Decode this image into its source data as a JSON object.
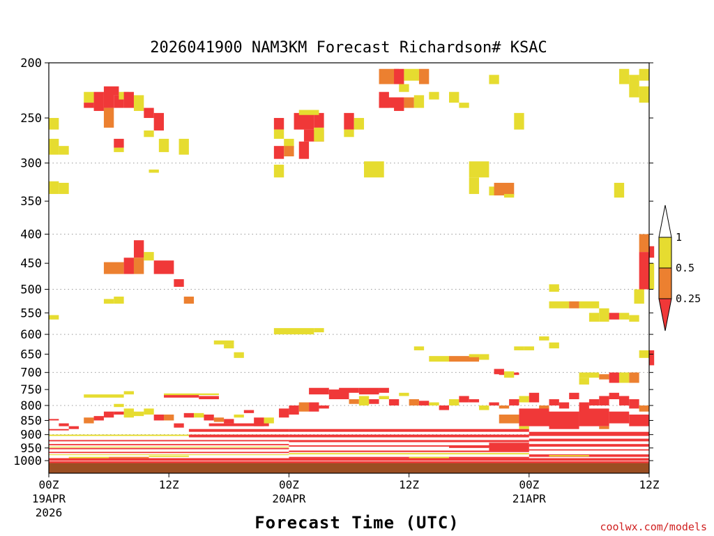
{
  "chart_data": {
    "type": "heatmap",
    "title": "2026041900 NAM3KM Forecast Richardson# KSAC",
    "xlabel": "Forecast Time (UTC)",
    "credit": "coolwx.com/models",
    "x_unit": "forecast hour",
    "xlim": [
      0,
      60
    ],
    "x_ticks": [
      {
        "x": 0,
        "label": "00Z",
        "date": "19APR",
        "year": "2026"
      },
      {
        "x": 12,
        "label": "12Z",
        "date": "",
        "year": ""
      },
      {
        "x": 24,
        "label": "00Z",
        "date": "20APR",
        "year": ""
      },
      {
        "x": 36,
        "label": "12Z",
        "date": "",
        "year": ""
      },
      {
        "x": 48,
        "label": "00Z",
        "date": "21APR",
        "year": ""
      },
      {
        "x": 60,
        "label": "12Z",
        "date": "",
        "year": ""
      }
    ],
    "y_unit": "pressure (hPa)",
    "ylim": [
      1020,
      200
    ],
    "y_ticks": [
      "200",
      "250",
      "300",
      "350",
      "400",
      "450",
      "500",
      "550",
      "600",
      "650",
      "700",
      "750",
      "800",
      "850",
      "900",
      "950",
      "1000"
    ],
    "gridlines_at": [
      300,
      400,
      500,
      600,
      700,
      800,
      900
    ],
    "legend": {
      "placement": "right",
      "levels": [
        {
          "label": "0.25",
          "color": "#f03838",
          "range": "< 0.25"
        },
        {
          "label": "0.5",
          "color": "#ec8030",
          "range": "0.25 - 0.5"
        },
        {
          "label": "1",
          "color": "#e6dc30",
          "range": "0.5 - 1"
        },
        {
          "label": "",
          "color": "#ffffff",
          "range": "> 1"
        }
      ]
    },
    "colors": {
      "c0": "#f03838",
      "c1": "#ec8030",
      "c2": "#e6dc30",
      "ground": "#9a4e22"
    },
    "ground_p": [
      1010,
      1020
    ],
    "cells": [
      [
        0,
        1,
        250,
        262,
        2
      ],
      [
        0,
        1,
        272,
        290,
        2
      ],
      [
        1,
        2,
        280,
        290,
        2
      ],
      [
        0,
        1,
        323,
        340,
        2
      ],
      [
        1,
        2,
        325,
        340,
        2
      ],
      [
        0,
        1,
        555,
        565,
        2
      ],
      [
        3.5,
        4.5,
        225,
        235,
        2
      ],
      [
        3.5,
        4.5,
        235,
        240,
        0
      ],
      [
        4.5,
        5.5,
        225,
        243,
        0
      ],
      [
        5.5,
        6.5,
        225,
        240,
        0
      ],
      [
        6.5,
        7.5,
        228,
        240,
        0
      ],
      [
        5.5,
        7,
        220,
        228,
        0
      ],
      [
        7,
        8,
        225,
        232,
        2
      ],
      [
        5.5,
        6.5,
        240,
        260,
        1
      ],
      [
        7.5,
        8.5,
        225,
        240,
        0
      ],
      [
        8.5,
        9.5,
        228,
        243,
        2
      ],
      [
        9.5,
        10.5,
        240,
        250,
        0
      ],
      [
        10.5,
        11.5,
        245,
        263,
        0
      ],
      [
        9.5,
        10.5,
        263,
        270,
        2
      ],
      [
        6.5,
        7.5,
        272,
        282,
        0
      ],
      [
        6.5,
        7.5,
        282,
        287,
        2
      ],
      [
        11,
        12,
        272,
        287,
        2
      ],
      [
        13,
        14,
        272,
        290,
        2
      ],
      [
        10,
        11,
        308,
        312,
        2
      ],
      [
        5.5,
        7.5,
        448,
        470,
        1
      ],
      [
        7.5,
        8.5,
        440,
        470,
        0
      ],
      [
        8.5,
        9.5,
        410,
        440,
        0
      ],
      [
        8.5,
        9.5,
        440,
        470,
        1
      ],
      [
        9.5,
        10.5,
        430,
        445,
        2
      ],
      [
        10.5,
        12.5,
        445,
        470,
        0
      ],
      [
        12.5,
        13.5,
        480,
        495,
        0
      ],
      [
        13.5,
        14.5,
        515,
        530,
        1
      ],
      [
        5.5,
        6.5,
        520,
        530,
        2
      ],
      [
        6.5,
        7.5,
        515,
        530,
        2
      ],
      [
        3.5,
        7.5,
        765,
        775,
        2
      ],
      [
        6.5,
        7.5,
        795,
        805,
        2
      ],
      [
        7.5,
        8.5,
        755,
        765,
        2
      ],
      [
        11.5,
        15,
        767,
        775,
        0
      ],
      [
        11.5,
        17,
        762,
        767,
        2
      ],
      [
        15,
        17,
        770,
        780,
        0
      ],
      [
        16.5,
        18.5,
        615,
        625,
        2
      ],
      [
        17.5,
        18.5,
        625,
        635,
        2
      ],
      [
        18.5,
        19.5,
        645,
        660,
        2
      ],
      [
        22.5,
        23.5,
        250,
        262,
        0
      ],
      [
        22.5,
        23.5,
        262,
        272,
        2
      ],
      [
        23.5,
        24.5,
        272,
        282,
        2
      ],
      [
        22.5,
        23.5,
        280,
        295,
        0
      ],
      [
        23.5,
        24.5,
        280,
        292,
        1
      ],
      [
        24.5,
        26.5,
        245,
        262,
        0
      ],
      [
        26.5,
        27.5,
        245,
        260,
        0
      ],
      [
        25.5,
        27.5,
        262,
        275,
        0
      ],
      [
        25,
        27,
        242,
        247,
        2
      ],
      [
        26.5,
        27.5,
        260,
        275,
        2
      ],
      [
        25,
        26,
        275,
        295,
        0
      ],
      [
        22.5,
        23.5,
        302,
        318,
        2
      ],
      [
        29.5,
        30.5,
        245,
        262,
        0
      ],
      [
        30.5,
        31.5,
        250,
        262,
        2
      ],
      [
        29.5,
        30.5,
        262,
        270,
        2
      ],
      [
        31.5,
        33.5,
        298,
        318,
        2
      ],
      [
        22.5,
        26.5,
        585,
        600,
        2
      ],
      [
        26.5,
        27.5,
        585,
        595,
        2
      ],
      [
        33,
        35,
        205,
        218,
        1
      ],
      [
        34.5,
        35.5,
        205,
        218,
        0
      ],
      [
        35.5,
        37,
        205,
        215,
        2
      ],
      [
        37,
        38,
        205,
        218,
        1
      ],
      [
        35,
        36,
        218,
        225,
        2
      ],
      [
        33,
        34,
        225,
        240,
        0
      ],
      [
        33,
        35,
        230,
        240,
        0
      ],
      [
        34.5,
        35.5,
        230,
        243,
        0
      ],
      [
        35.5,
        36.5,
        230,
        240,
        1
      ],
      [
        36.5,
        37.5,
        228,
        240,
        2
      ],
      [
        38,
        39,
        225,
        232,
        2
      ],
      [
        40,
        41,
        225,
        235,
        2
      ],
      [
        41,
        42,
        235,
        240,
        2
      ],
      [
        42,
        44,
        298,
        318,
        2
      ],
      [
        42,
        43,
        318,
        340,
        2
      ],
      [
        44,
        45,
        330,
        342,
        2
      ],
      [
        44.5,
        46.5,
        325,
        342,
        1
      ],
      [
        45.5,
        46.5,
        340,
        345,
        2
      ],
      [
        46.5,
        47.5,
        245,
        262,
        2
      ],
      [
        44,
        45,
        210,
        218,
        2
      ],
      [
        57,
        58,
        205,
        218,
        2
      ],
      [
        58,
        59,
        210,
        220,
        2
      ],
      [
        59,
        60,
        205,
        215,
        2
      ],
      [
        59,
        60,
        220,
        235,
        2
      ],
      [
        58,
        59,
        215,
        230,
        2
      ],
      [
        56.5,
        57.5,
        325,
        345,
        2
      ],
      [
        36.5,
        37.5,
        630,
        640,
        2
      ],
      [
        38,
        40,
        655,
        670,
        2
      ],
      [
        40,
        43,
        655,
        670,
        1
      ],
      [
        42,
        43,
        650,
        658,
        2
      ],
      [
        43,
        44,
        650,
        665,
        2
      ],
      [
        44.5,
        45.5,
        690,
        705,
        0
      ],
      [
        45,
        47,
        700,
        707,
        0
      ],
      [
        45.5,
        46.5,
        697,
        715,
        2
      ],
      [
        46.5,
        47.5,
        630,
        640,
        2
      ],
      [
        47.5,
        48.5,
        630,
        640,
        2
      ],
      [
        50,
        51,
        490,
        505,
        2
      ],
      [
        49,
        50,
        605,
        615,
        2
      ],
      [
        50,
        51,
        620,
        635,
        2
      ],
      [
        50,
        52,
        525,
        540,
        2
      ],
      [
        52,
        53,
        525,
        540,
        1
      ],
      [
        53,
        55,
        525,
        540,
        2
      ],
      [
        55,
        56,
        540,
        570,
        2
      ],
      [
        54,
        55,
        550,
        570,
        2
      ],
      [
        56,
        57,
        550,
        565,
        0
      ],
      [
        57,
        58,
        550,
        565,
        2
      ],
      [
        58,
        59,
        555,
        570,
        2
      ],
      [
        58.5,
        59.5,
        500,
        530,
        2
      ],
      [
        59,
        60,
        400,
        430,
        1
      ],
      [
        59,
        60,
        430,
        500,
        0
      ],
      [
        60,
        60.5,
        420,
        440,
        0
      ],
      [
        60,
        60.5,
        450,
        500,
        2
      ],
      [
        59,
        60,
        640,
        660,
        2
      ],
      [
        60,
        60.5,
        640,
        680,
        0
      ],
      [
        53,
        55,
        700,
        715,
        2
      ],
      [
        53,
        54,
        715,
        735,
        2
      ],
      [
        55,
        56,
        705,
        720,
        1
      ],
      [
        56,
        57,
        700,
        730,
        0
      ],
      [
        57,
        58,
        700,
        730,
        2
      ],
      [
        58,
        59,
        700,
        730,
        1
      ],
      [
        0,
        1,
        845,
        850,
        0
      ],
      [
        0,
        2,
        880,
        885,
        0
      ],
      [
        1,
        2,
        860,
        870,
        0
      ],
      [
        2,
        3,
        870,
        880,
        0
      ],
      [
        3.5,
        4.5,
        840,
        860,
        1
      ],
      [
        4.5,
        5.5,
        835,
        850,
        0
      ],
      [
        5.5,
        6.5,
        820,
        840,
        0
      ],
      [
        6.5,
        7.5,
        820,
        830,
        0
      ],
      [
        7.5,
        8.5,
        810,
        840,
        2
      ],
      [
        8.5,
        9.5,
        820,
        835,
        2
      ],
      [
        9.5,
        10.5,
        810,
        830,
        2
      ],
      [
        10.5,
        11.5,
        830,
        850,
        0
      ],
      [
        11.5,
        12.5,
        830,
        850,
        1
      ],
      [
        12.5,
        13.5,
        860,
        875,
        0
      ],
      [
        13.5,
        14.5,
        825,
        840,
        0
      ],
      [
        14.5,
        15.5,
        825,
        840,
        2
      ],
      [
        15.5,
        16.5,
        830,
        850,
        0
      ],
      [
        16.5,
        17.5,
        840,
        855,
        1
      ],
      [
        17.5,
        18.5,
        845,
        860,
        0
      ],
      [
        18.5,
        19.5,
        830,
        840,
        2
      ],
      [
        19.5,
        20.5,
        815,
        825,
        0
      ],
      [
        20.5,
        21.5,
        840,
        870,
        0
      ],
      [
        21.5,
        22.5,
        840,
        860,
        2
      ],
      [
        23,
        24,
        810,
        840,
        0
      ],
      [
        24,
        25,
        800,
        830,
        0
      ],
      [
        25,
        26,
        790,
        820,
        1
      ],
      [
        26,
        27,
        790,
        820,
        0
      ],
      [
        27,
        28,
        800,
        810,
        0
      ],
      [
        26,
        28,
        745,
        765,
        0
      ],
      [
        28,
        30,
        750,
        780,
        0
      ],
      [
        29,
        31,
        745,
        760,
        0
      ],
      [
        31,
        33,
        745,
        765,
        0
      ],
      [
        33,
        34,
        745,
        760,
        0
      ],
      [
        30,
        31,
        780,
        795,
        1
      ],
      [
        31,
        32,
        770,
        800,
        2
      ],
      [
        32,
        33,
        780,
        795,
        0
      ],
      [
        33,
        34,
        770,
        780,
        2
      ],
      [
        34,
        35,
        780,
        800,
        0
      ],
      [
        35,
        36,
        760,
        770,
        2
      ],
      [
        36,
        37,
        780,
        800,
        1
      ],
      [
        37,
        38,
        785,
        800,
        0
      ],
      [
        38,
        39,
        790,
        800,
        2
      ],
      [
        39,
        40,
        800,
        815,
        0
      ],
      [
        40,
        41,
        780,
        800,
        2
      ],
      [
        41,
        42,
        770,
        790,
        0
      ],
      [
        42,
        43,
        780,
        790,
        0
      ],
      [
        43,
        44,
        800,
        815,
        2
      ],
      [
        44,
        45,
        790,
        800,
        0
      ],
      [
        45,
        46,
        800,
        810,
        1
      ],
      [
        46,
        47,
        780,
        800,
        0
      ],
      [
        47,
        48,
        770,
        790,
        2
      ],
      [
        48,
        49,
        760,
        790,
        0
      ],
      [
        49,
        50,
        800,
        815,
        1
      ],
      [
        50,
        51,
        780,
        800,
        0
      ],
      [
        51,
        52,
        790,
        810,
        0
      ],
      [
        52,
        53,
        760,
        780,
        0
      ],
      [
        53,
        54,
        790,
        820,
        0
      ],
      [
        54,
        55,
        780,
        800,
        0
      ],
      [
        55,
        56,
        770,
        800,
        0
      ],
      [
        56,
        57,
        760,
        780,
        0
      ],
      [
        57,
        58,
        770,
        800,
        0
      ],
      [
        58,
        59,
        780,
        810,
        0
      ],
      [
        59,
        60,
        800,
        820,
        1
      ],
      [
        47,
        50,
        810,
        870,
        0
      ],
      [
        50,
        53,
        820,
        880,
        0
      ],
      [
        53,
        56,
        810,
        870,
        0
      ],
      [
        56,
        58,
        820,
        860,
        0
      ],
      [
        58,
        60,
        830,
        870,
        0
      ],
      [
        45,
        47,
        830,
        860,
        1
      ],
      [
        47,
        48,
        870,
        880,
        2
      ],
      [
        55,
        56,
        870,
        880,
        1
      ],
      [
        0,
        24,
        920,
        925,
        0
      ],
      [
        0,
        24,
        935,
        940,
        0
      ],
      [
        0,
        24,
        950,
        955,
        0
      ],
      [
        0,
        24,
        965,
        970,
        0
      ],
      [
        0,
        24,
        900,
        905,
        2
      ],
      [
        0,
        24,
        945,
        948,
        2
      ],
      [
        0,
        24,
        975,
        978,
        2
      ],
      [
        14,
        24,
        880,
        890,
        0
      ],
      [
        14,
        24,
        900,
        910,
        0
      ],
      [
        16,
        22,
        860,
        870,
        0
      ],
      [
        24,
        48,
        900,
        910,
        0
      ],
      [
        24,
        48,
        920,
        928,
        0
      ],
      [
        24,
        48,
        940,
        945,
        0
      ],
      [
        24,
        48,
        960,
        966,
        0
      ],
      [
        24,
        48,
        880,
        890,
        0
      ],
      [
        24,
        48,
        970,
        975,
        2
      ],
      [
        24,
        48,
        985,
        990,
        0
      ],
      [
        48,
        60,
        890,
        905,
        0
      ],
      [
        48,
        60,
        915,
        925,
        0
      ],
      [
        48,
        60,
        935,
        945,
        0
      ],
      [
        48,
        60,
        955,
        960,
        0
      ],
      [
        48,
        60,
        975,
        985,
        0
      ],
      [
        44,
        48,
        930,
        960,
        0
      ],
      [
        40,
        44,
        940,
        950,
        0
      ],
      [
        0,
        60,
        990,
        1000,
        0
      ],
      [
        0,
        60,
        1002,
        1010,
        0
      ],
      [
        2,
        6,
        985,
        990,
        2
      ],
      [
        6,
        10,
        985,
        990,
        1
      ],
      [
        10,
        14,
        980,
        985,
        2
      ],
      [
        36,
        40,
        985,
        990,
        2
      ],
      [
        50,
        54,
        978,
        983,
        2
      ]
    ]
  }
}
